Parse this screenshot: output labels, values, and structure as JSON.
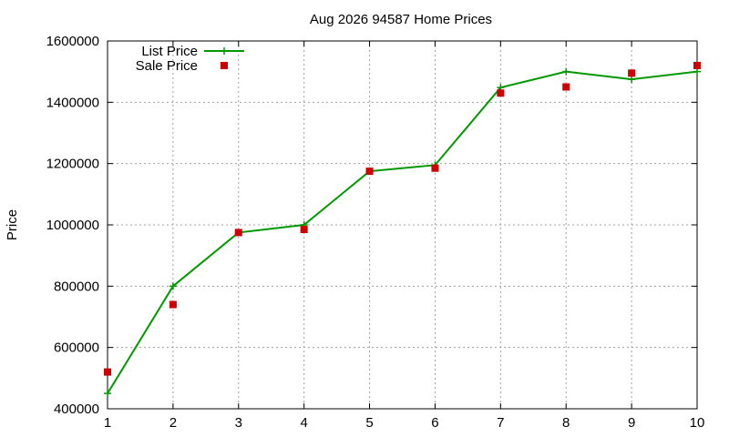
{
  "chart_data": {
    "type": "line",
    "title": "Aug 2026 94587 Home Prices",
    "xlabel": "",
    "ylabel": "Price",
    "x": [
      1,
      2,
      3,
      4,
      5,
      6,
      7,
      8,
      9,
      10
    ],
    "xlim": [
      1,
      10
    ],
    "ylim": [
      400000,
      1600000
    ],
    "xticks": [
      "1",
      "2",
      "3",
      "4",
      "5",
      "6",
      "7",
      "8",
      "9",
      "10"
    ],
    "yticks": [
      "400000",
      "600000",
      "800000",
      "1000000",
      "1200000",
      "1400000",
      "1600000"
    ],
    "grid": true,
    "legend_position": "top-left",
    "series": [
      {
        "name": "List Price",
        "style": "line-with-plus-markers",
        "color": "#009900",
        "values": [
          450000,
          800000,
          975000,
          1000000,
          1175000,
          1195000,
          1448000,
          1500000,
          1475000,
          1500000
        ]
      },
      {
        "name": "Sale Price",
        "style": "square-points",
        "color": "#cc0000",
        "values": [
          520000,
          740000,
          975000,
          985000,
          1175000,
          1185000,
          1430000,
          1450000,
          1495000,
          1520000
        ]
      }
    ]
  }
}
